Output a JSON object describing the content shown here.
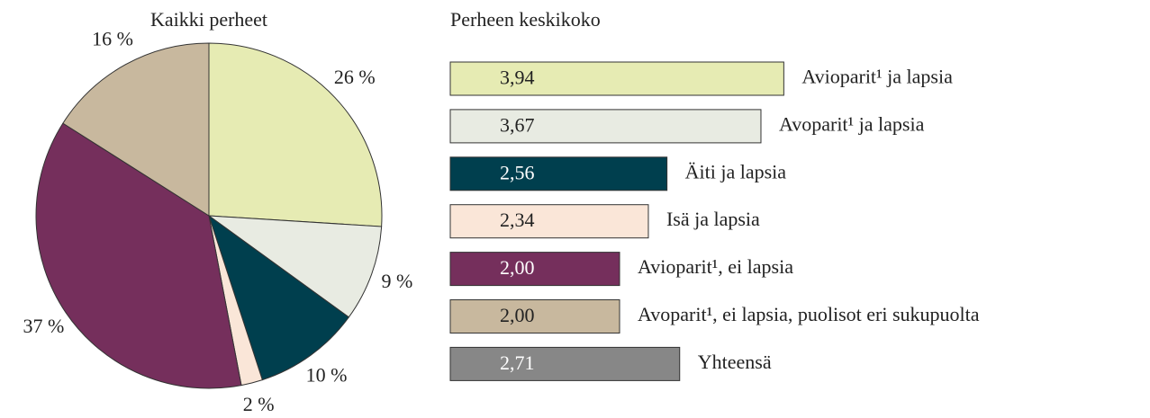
{
  "chart_data": [
    {
      "type": "pie",
      "title": "Kaikki perheet",
      "values": [
        26,
        9,
        10,
        2,
        37,
        16
      ],
      "value_labels": [
        "26 %",
        "9 %",
        "10 %",
        "2 %",
        "37 %",
        "16 %"
      ],
      "colors": [
        "#e6ebb3",
        "#e8ebe2",
        "#003f4e",
        "#fae6d8",
        "#752f5c",
        "#c8b89e"
      ]
    },
    {
      "type": "bar",
      "orientation": "horizontal",
      "title": "Perheen keskikoko",
      "categories": [
        "Avioparit¹ ja lapsia",
        "Avoparit¹ ja lapsia",
        "Äiti ja lapsia",
        "Isä ja lapsia",
        "Avioparit¹, ei lapsia",
        "Avoparit¹, ei lapsia, puolisot eri sukupuolta",
        "Yhteensä"
      ],
      "values": [
        3.94,
        3.67,
        2.56,
        2.34,
        2.0,
        2.0,
        2.71
      ],
      "value_labels": [
        "3,94",
        "3,67",
        "2,56",
        "2,34",
        "2,00",
        "2,00",
        "2,71"
      ],
      "colors": [
        "#e6ebb3",
        "#e8ebe2",
        "#003f4e",
        "#fae6d8",
        "#752f5c",
        "#c8b89e",
        "#878787"
      ]
    }
  ]
}
